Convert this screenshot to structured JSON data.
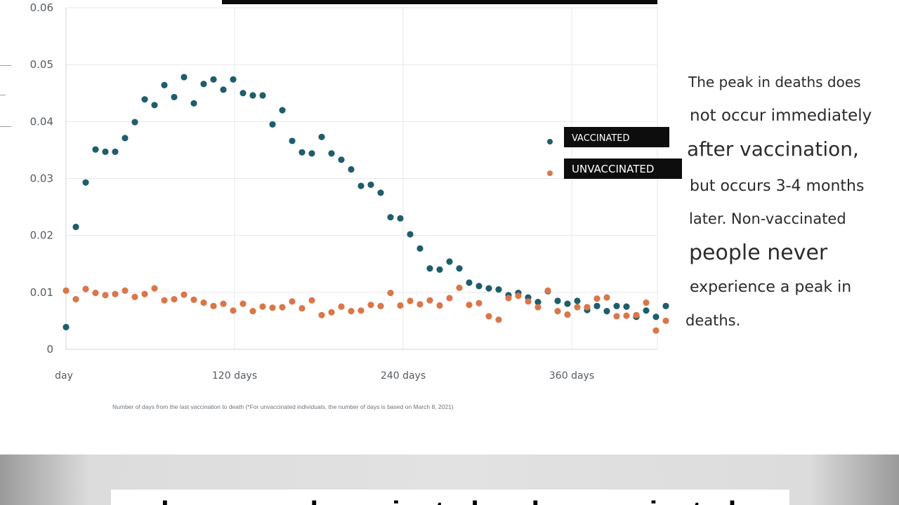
{
  "chart_data": {
    "type": "scatter",
    "title": "",
    "xlabel": "Number of days from the last vaccination to death (*For unvaccinated individuals, the number of days is based on March 8, 2021)",
    "ylabel": "",
    "xlim": [
      0,
      420
    ],
    "ylim": [
      0,
      0.06
    ],
    "grid": true,
    "x_ticks": [
      {
        "value": 0,
        "label": "day"
      },
      {
        "value": 120,
        "label": "120 days"
      },
      {
        "value": 240,
        "label": "240 days"
      },
      {
        "value": 360,
        "label": "360 days"
      }
    ],
    "y_ticks": [
      {
        "value": 0,
        "label": "0"
      },
      {
        "value": 0.01,
        "label": "0.01"
      },
      {
        "value": 0.02,
        "label": "0.02"
      },
      {
        "value": 0.03,
        "label": "0.03"
      },
      {
        "value": 0.04,
        "label": "0.04"
      },
      {
        "value": 0.05,
        "label": "0.05"
      },
      {
        "value": 0.06,
        "label": "0.06"
      }
    ],
    "legend_position": "right",
    "series": [
      {
        "name": "VACCINATED",
        "color": "#1f5d6b",
        "points": [
          [
            0,
            0.0039
          ],
          [
            7,
            0.0215
          ],
          [
            14,
            0.0293
          ],
          [
            21,
            0.0351
          ],
          [
            28,
            0.0347
          ],
          [
            35,
            0.0347
          ],
          [
            42,
            0.0371
          ],
          [
            49,
            0.0399
          ],
          [
            56,
            0.0439
          ],
          [
            63,
            0.0429
          ],
          [
            70,
            0.0464
          ],
          [
            77,
            0.0443
          ],
          [
            84,
            0.0478
          ],
          [
            91,
            0.0432
          ],
          [
            98,
            0.0466
          ],
          [
            105,
            0.0474
          ],
          [
            112,
            0.0456
          ],
          [
            119,
            0.0474
          ],
          [
            126,
            0.045
          ],
          [
            133,
            0.0446
          ],
          [
            140,
            0.0446
          ],
          [
            147,
            0.0395
          ],
          [
            154,
            0.042
          ],
          [
            161,
            0.0366
          ],
          [
            168,
            0.0346
          ],
          [
            175,
            0.0344
          ],
          [
            182,
            0.0373
          ],
          [
            189,
            0.0344
          ],
          [
            196,
            0.0333
          ],
          [
            203,
            0.0316
          ],
          [
            210,
            0.0287
          ],
          [
            217,
            0.0289
          ],
          [
            224,
            0.0275
          ],
          [
            231,
            0.0232
          ],
          [
            238,
            0.023
          ],
          [
            245,
            0.0202
          ],
          [
            252,
            0.0177
          ],
          [
            259,
            0.0142
          ],
          [
            266,
            0.014
          ],
          [
            273,
            0.0154
          ],
          [
            280,
            0.0142
          ],
          [
            287,
            0.0117
          ],
          [
            294,
            0.0111
          ],
          [
            301,
            0.0107
          ],
          [
            308,
            0.0105
          ],
          [
            315,
            0.0095
          ],
          [
            322,
            0.0099
          ],
          [
            329,
            0.0091
          ],
          [
            336,
            0.0083
          ],
          [
            343,
            0.0102
          ],
          [
            350,
            0.0085
          ],
          [
            357,
            0.008
          ],
          [
            364,
            0.0085
          ],
          [
            371,
            0.0069
          ],
          [
            378,
            0.0076
          ],
          [
            385,
            0.0067
          ],
          [
            392,
            0.0076
          ],
          [
            399,
            0.0075
          ],
          [
            406,
            0.0057
          ],
          [
            413,
            0.0068
          ],
          [
            420,
            0.0057
          ],
          [
            427,
            0.0076
          ]
        ]
      },
      {
        "name": "UNVACCINATED",
        "color": "#d9774a",
        "points": [
          [
            0,
            0.0103
          ],
          [
            7,
            0.0088
          ],
          [
            14,
            0.0106
          ],
          [
            21,
            0.0099
          ],
          [
            28,
            0.0095
          ],
          [
            35,
            0.0097
          ],
          [
            42,
            0.0103
          ],
          [
            49,
            0.0092
          ],
          [
            56,
            0.0097
          ],
          [
            63,
            0.0107
          ],
          [
            70,
            0.0086
          ],
          [
            77,
            0.0088
          ],
          [
            84,
            0.0096
          ],
          [
            91,
            0.0087
          ],
          [
            98,
            0.0082
          ],
          [
            105,
            0.0076
          ],
          [
            112,
            0.008
          ],
          [
            119,
            0.0068
          ],
          [
            126,
            0.008
          ],
          [
            133,
            0.0067
          ],
          [
            140,
            0.0075
          ],
          [
            147,
            0.0073
          ],
          [
            154,
            0.0074
          ],
          [
            161,
            0.0084
          ],
          [
            168,
            0.0072
          ],
          [
            175,
            0.0086
          ],
          [
            182,
            0.006
          ],
          [
            189,
            0.0065
          ],
          [
            196,
            0.0075
          ],
          [
            203,
            0.0067
          ],
          [
            210,
            0.0068
          ],
          [
            217,
            0.0078
          ],
          [
            224,
            0.0076
          ],
          [
            231,
            0.0099
          ],
          [
            238,
            0.0077
          ],
          [
            245,
            0.0085
          ],
          [
            252,
            0.0079
          ],
          [
            259,
            0.0086
          ],
          [
            266,
            0.0077
          ],
          [
            273,
            0.009
          ],
          [
            280,
            0.0108
          ],
          [
            287,
            0.0078
          ],
          [
            294,
            0.0081
          ],
          [
            301,
            0.0058
          ],
          [
            308,
            0.0052
          ],
          [
            315,
            0.009
          ],
          [
            322,
            0.0094
          ],
          [
            329,
            0.0084
          ],
          [
            336,
            0.0074
          ],
          [
            343,
            0.0103
          ],
          [
            350,
            0.0067
          ],
          [
            357,
            0.0061
          ],
          [
            364,
            0.0074
          ],
          [
            371,
            0.0074
          ],
          [
            378,
            0.0089
          ],
          [
            385,
            0.0091
          ],
          [
            392,
            0.0058
          ],
          [
            399,
            0.0059
          ],
          [
            406,
            0.006
          ],
          [
            413,
            0.0082
          ],
          [
            420,
            0.0033
          ],
          [
            427,
            0.005
          ]
        ]
      }
    ]
  },
  "annotation": {
    "line1": "The peak in deaths does",
    "line2": "not occur immediately",
    "line3": "after vaccination,",
    "line4": "but occurs 3-4 months",
    "line5": "later. Non-vaccinated",
    "line6": "people never",
    "line7": "experience a peak in",
    "line8": "deaths."
  },
  "caption": "and compared vaccinated and unvaccinated"
}
